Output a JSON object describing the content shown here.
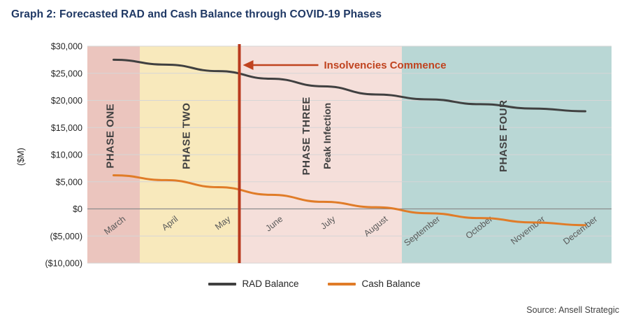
{
  "title": "Graph 2: Forecasted RAD and Cash Balance through COVID-19 Phases",
  "source": "Source: Ansell Strategic",
  "legend": [
    {
      "label": "RAD Balance",
      "color": "#404040"
    },
    {
      "label": "Cash Balance",
      "color": "#E07C28"
    }
  ],
  "chart_data": {
    "type": "line",
    "categories": [
      "March",
      "April",
      "May",
      "June",
      "July",
      "August",
      "September",
      "October",
      "November",
      "December"
    ],
    "series": [
      {
        "name": "RAD Balance",
        "color": "#404040",
        "values": [
          27500,
          26600,
          25400,
          24000,
          22600,
          21100,
          20200,
          19300,
          18500,
          18000
        ]
      },
      {
        "name": "Cash Balance",
        "color": "#E07C28",
        "values": [
          6200,
          5300,
          4000,
          2600,
          1300,
          300,
          -800,
          -1700,
          -2500,
          -3000
        ]
      }
    ],
    "ylabel": "($M)",
    "ylim": [
      -10000,
      30000
    ],
    "ytick_step": 5000,
    "yticks": [
      "$30,000",
      "$25,000",
      "$20,000",
      "$15,000",
      "$10,000",
      "$5,000",
      "$0",
      "($5,000)",
      "($10,000)"
    ],
    "negative_tick_color": "#C00000",
    "grid": "horizontal",
    "legend_position": "bottom",
    "phases": [
      {
        "label": "PHASE ONE",
        "sublabel": "",
        "start": 0,
        "end": 1,
        "color": "#EBC5BE"
      },
      {
        "label": "PHASE TWO",
        "sublabel": "",
        "start": 1,
        "end": 2.9,
        "color": "#F8E9BC"
      },
      {
        "label": "PHASE THREE",
        "sublabel": "Peak Infection",
        "start": 2.9,
        "end": 6,
        "color": "#F5DFDA"
      },
      {
        "label": "PHASE FOUR",
        "sublabel": "",
        "start": 6,
        "end": 10,
        "color": "#B9D7D5"
      }
    ],
    "event_line": {
      "x": 2.9,
      "color": "#B93A1E",
      "label": "Insolvencies Commence",
      "label_color": "#C0431F"
    }
  }
}
